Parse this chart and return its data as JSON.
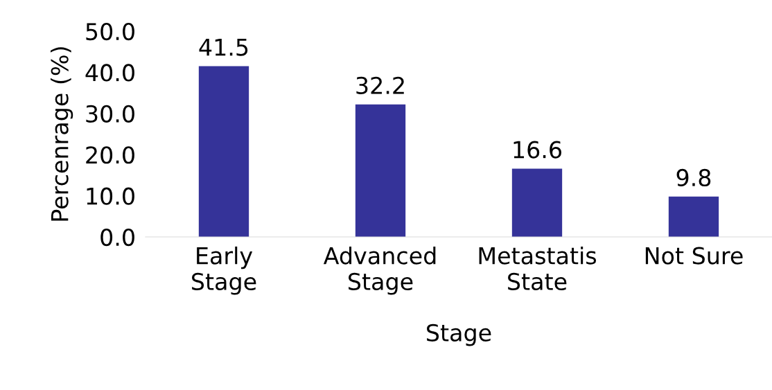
{
  "chart_data": {
    "type": "bar",
    "xlabel": "Stage",
    "ylabel": "Percenrage (%)",
    "categories": [
      "Early\nStage",
      "Advanced\nStage",
      "Metastatis\nState",
      "Not Sure"
    ],
    "values": [
      41.5,
      32.2,
      16.6,
      9.8
    ],
    "color": "#353399",
    "ylim": [
      0,
      50
    ],
    "yticks": [
      {
        "value": 0,
        "label": "0.0"
      },
      {
        "value": 10,
        "label": "10.0"
      },
      {
        "value": 20,
        "label": "20.0"
      },
      {
        "value": 30,
        "label": "30.0"
      },
      {
        "value": 40,
        "label": "40.0"
      },
      {
        "value": 50,
        "label": "50.0"
      }
    ],
    "data_labels": true,
    "grid": false
  }
}
